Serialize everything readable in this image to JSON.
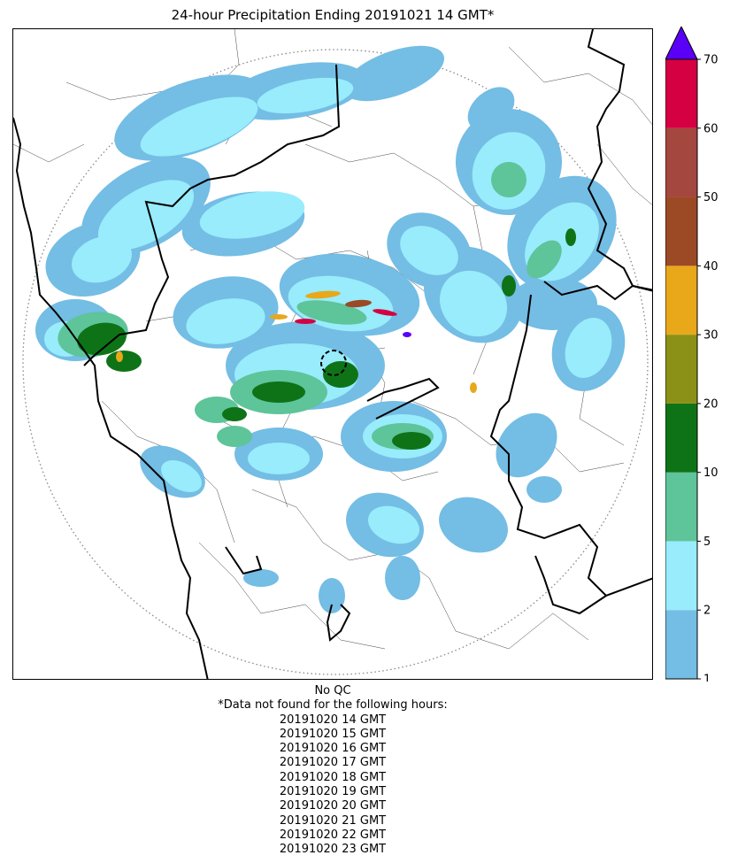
{
  "title": "24-hour Precipitation Ending 20191021 14 GMT*",
  "colors": {
    "r1": "#74bde4",
    "r2": "#98ecfb",
    "r5": "#5ec49a",
    "r10": "#0e7317",
    "r20": "#8a9116",
    "r30": "#e8a81a",
    "r40": "#9b4a25",
    "r50": "#a4473e",
    "r60": "#d40042",
    "over": "#5b00f6"
  },
  "colorbar": {
    "levels": [
      "1",
      "2",
      "5",
      "10",
      "20",
      "30",
      "40",
      "50",
      "60",
      "70"
    ],
    "extend": "max"
  },
  "footer": {
    "qc_note": "No QC",
    "missing_header": "*Data not found for the following hours:",
    "missing_hours": [
      "20191020 14 GMT",
      "20191020 15 GMT",
      "20191020 16 GMT",
      "20191020 17 GMT",
      "20191020 18 GMT",
      "20191020 19 GMT",
      "20191020 20 GMT",
      "20191020 21 GMT",
      "20191020 22 GMT",
      "20191020 23 GMT"
    ]
  }
}
